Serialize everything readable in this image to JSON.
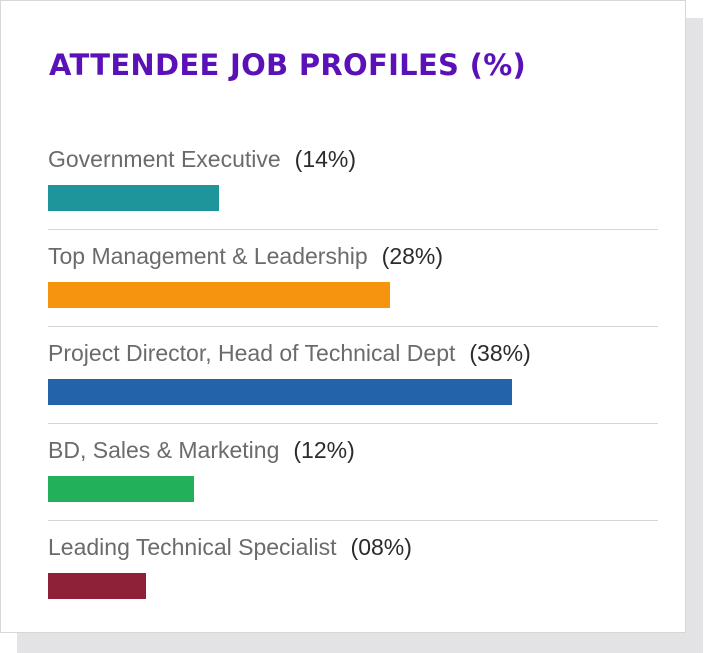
{
  "chart_data": {
    "type": "bar",
    "orientation": "horizontal",
    "title": "ATTENDEE JOB PROFILES (%)",
    "categories": [
      "Government Executive",
      "Top Management & Leadership",
      "Project Director, Head of Technical Dept",
      "BD, Sales & Marketing",
      "Leading Technical Specialist"
    ],
    "values": [
      14,
      28,
      38,
      12,
      8
    ],
    "value_labels": [
      "(14%)",
      "(28%)",
      "(38%)",
      "(12%)",
      "(08%)"
    ],
    "colors": [
      "#1e959b",
      "#f7940f",
      "#2263a9",
      "#22b15a",
      "#8e2038"
    ],
    "xlim": [
      0,
      50
    ],
    "xlabel": "",
    "ylabel": "",
    "grid": false,
    "legend": "none"
  }
}
